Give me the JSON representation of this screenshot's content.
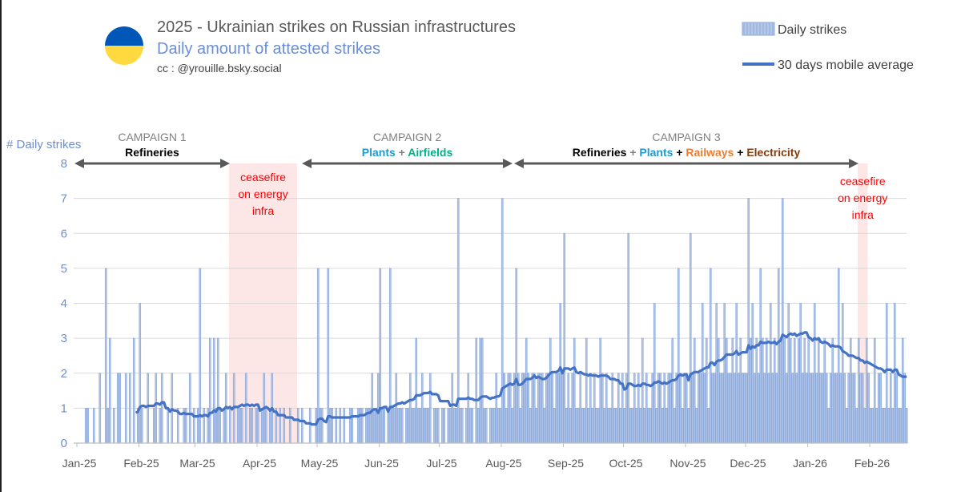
{
  "header": {
    "title": "2025 - Ukrainian strikes on Russian infrastructures",
    "subtitle": "Daily amount of attested strikes",
    "credit": "cc : @yrouille.bsky.social",
    "flag_colors": [
      "#0057b7",
      "#ffd93d"
    ]
  },
  "legend": {
    "bars_label": "Daily strikes",
    "line_label": "30 days mobile average"
  },
  "annotations": {
    "campaigns": [
      {
        "title": "CAMPAIGN 1",
        "parts": [
          {
            "text": "Refineries",
            "color": "#000000"
          }
        ],
        "from": "2025-01-01",
        "to": "2025-03-18"
      },
      {
        "title": "CAMPAIGN 2",
        "parts": [
          {
            "text": "Plants",
            "color": "#1d9bd1"
          },
          {
            "text": " + ",
            "color": "#808080"
          },
          {
            "text": "Airfields",
            "color": "#00b087"
          }
        ],
        "from": "2025-04-22",
        "to": "2025-08-14"
      },
      {
        "title": "CAMPAIGN 3",
        "parts": [
          {
            "text": "Refineries",
            "color": "#000000"
          },
          {
            "text": " + ",
            "color": "#808080"
          },
          {
            "text": "Plants",
            "color": "#1d9bd1"
          },
          {
            "text": " + ",
            "color": "#000000"
          },
          {
            "text": "Railways",
            "color": "#ed7d31"
          },
          {
            "text": " + ",
            "color": "#000000"
          },
          {
            "text": "Electricity",
            "color": "#843c0c"
          }
        ],
        "from": "2025-08-15",
        "to": "2026-01-26"
      }
    ],
    "ceasefires": [
      {
        "lines": [
          "ceasefire",
          "on energy",
          "infra"
        ],
        "from": "2025-03-18",
        "to": "2025-04-21"
      },
      {
        "lines": [
          "ceasefire",
          "on energy",
          "infra"
        ],
        "from": "2026-01-26",
        "to": "2026-01-31"
      }
    ]
  },
  "colors": {
    "bars": "#8eaadb",
    "bar_fill": "#b4c7e7",
    "line": "#4472c4",
    "ceasefire": "#fde3e3",
    "arrow": "#595959",
    "grid": "#d9d9d9"
  },
  "chart_data": {
    "type": "bar",
    "title": "2025 - Ukrainian strikes on Russian infrastructures",
    "subtitle": "Daily amount of attested strikes",
    "ylabel": "# Daily strikes",
    "xlabel": "",
    "ylim": [
      0,
      8
    ],
    "yticks": [
      0,
      1,
      2,
      3,
      4,
      5,
      6,
      7,
      8
    ],
    "x_tick_labels": [
      "Jan-25",
      "Feb-25",
      "Mar-25",
      "Apr-25",
      "May-25",
      "Jun-25",
      "Jul-25",
      "Aug-25",
      "Sep-25",
      "Oct-25",
      "Nov-25",
      "Dec-25",
      "Jan-26",
      "Feb-26"
    ],
    "grid": true,
    "legend_position": "top-right",
    "start_date": "2025-01-01",
    "moving_average_window": 30,
    "series": [
      {
        "name": "Daily strikes",
        "type": "bar",
        "months": [
          {
            "month": "2025-01",
            "values": [
              0,
              0,
              0,
              0,
              1,
              1,
              0,
              0,
              1,
              0,
              0,
              2,
              0,
              0,
              5,
              1,
              3,
              0,
              1,
              0,
              2,
              2,
              0,
              0,
              2,
              0,
              2,
              0,
              3,
              0,
              1
            ]
          },
          {
            "month": "2025-02",
            "values": [
              4,
              1,
              0,
              0,
              2,
              0,
              0,
              1,
              2,
              0,
              1,
              2,
              0,
              0,
              1,
              0,
              2,
              0,
              0,
              1,
              0,
              0,
              1,
              1,
              0,
              2,
              0,
              1
            ]
          },
          {
            "month": "2025-03",
            "values": [
              0,
              1,
              5,
              0,
              1,
              0,
              1,
              3,
              0,
              3,
              1,
              3,
              1,
              0,
              1,
              2,
              0,
              1,
              0,
              2,
              0,
              1,
              1,
              1,
              0,
              2,
              0,
              1,
              1,
              0,
              1
            ]
          },
          {
            "month": "2025-04",
            "values": [
              1,
              0,
              1,
              2,
              1,
              0,
              1,
              2,
              0,
              1,
              0,
              1,
              0,
              1,
              0,
              0,
              1,
              0,
              0,
              0,
              1,
              0,
              1,
              0,
              0,
              0,
              1,
              0,
              0,
              1
            ]
          },
          {
            "month": "2025-05",
            "values": [
              5,
              1,
              1,
              0,
              0,
              5,
              1,
              1,
              0,
              1,
              0,
              1,
              0,
              1,
              0,
              0,
              1,
              1,
              0,
              0,
              1,
              1,
              1,
              0,
              1,
              1,
              1,
              2,
              1,
              1,
              2
            ]
          },
          {
            "month": "2025-06",
            "values": [
              5,
              1,
              1,
              0,
              1,
              5,
              1,
              1,
              2,
              1,
              1,
              1,
              0,
              1,
              1,
              2,
              1,
              1,
              3,
              1,
              1,
              2,
              1,
              1,
              1,
              2,
              0,
              1,
              1,
              1
            ]
          },
          {
            "month": "2025-07",
            "values": [
              0,
              1,
              1,
              0,
              1,
              1,
              2,
              1,
              1,
              7,
              1,
              1,
              0,
              1,
              2,
              1,
              1,
              0,
              3,
              1,
              3,
              3,
              1,
              1,
              0,
              1,
              1,
              1,
              2,
              1,
              1
            ]
          },
          {
            "month": "2025-08",
            "values": [
              7,
              2,
              1,
              2,
              2,
              1,
              2,
              5,
              2,
              1,
              2,
              2,
              3,
              2,
              1,
              2,
              2,
              1,
              2,
              2,
              2,
              1,
              2,
              2,
              3,
              2,
              1,
              2,
              2,
              4,
              2
            ]
          },
          {
            "month": "2025-09",
            "values": [
              6,
              1,
              2,
              1,
              2,
              3,
              1,
              1,
              2,
              1,
              1,
              3,
              1,
              2,
              1,
              2,
              1,
              1,
              3,
              2,
              1,
              2,
              1,
              1,
              2,
              1,
              1,
              2,
              1,
              2
            ]
          },
          {
            "month": "2025-10",
            "values": [
              1,
              2,
              6,
              1,
              1,
              2,
              1,
              2,
              1,
              3,
              1,
              2,
              1,
              1,
              2,
              4,
              1,
              2,
              2,
              1,
              2,
              1,
              2,
              2,
              3,
              1,
              2,
              5,
              2,
              1,
              2
            ]
          },
          {
            "month": "2025-11",
            "values": [
              2,
              1,
              6,
              2,
              3,
              1,
              2,
              2,
              4,
              2,
              3,
              1,
              5,
              2,
              2,
              4,
              3,
              2,
              2,
              4,
              3,
              2,
              2,
              3,
              2,
              4,
              2,
              3,
              2,
              2
            ]
          },
          {
            "month": "2025-12",
            "values": [
              2,
              7,
              3,
              4,
              2,
              3,
              2,
              5,
              3,
              2,
              3,
              2,
              4,
              2,
              3,
              2,
              5,
              3,
              7,
              3,
              2,
              4,
              3,
              2,
              3,
              2,
              3,
              4,
              2,
              3,
              2
            ]
          },
          {
            "month": "2026-01",
            "values": [
              3,
              2,
              2,
              4,
              2,
              3,
              2,
              2,
              3,
              2,
              1,
              2,
              3,
              2,
              2,
              5,
              2,
              4,
              2,
              1,
              2,
              3,
              2,
              2,
              1,
              3,
              2,
              2,
              1,
              3,
              2
            ]
          },
          {
            "month": "2026-02",
            "values": [
              1,
              1,
              3,
              1,
              2,
              2,
              1,
              1,
              4,
              1,
              2,
              1,
              4,
              2,
              1,
              1,
              3,
              2,
              1
            ]
          }
        ]
      },
      {
        "name": "30 days mobile average",
        "type": "line",
        "derived_from": "Daily strikes"
      }
    ]
  }
}
